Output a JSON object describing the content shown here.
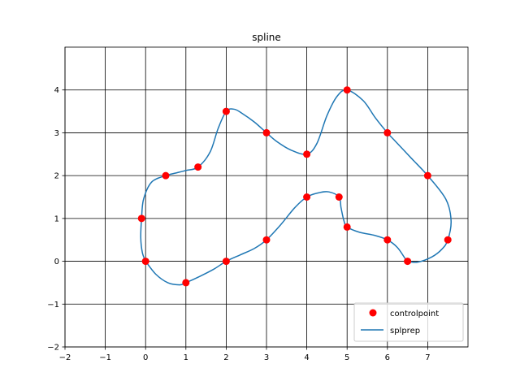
{
  "chart_data": {
    "type": "line",
    "title": "spline",
    "xlabel": "",
    "ylabel": "",
    "xlim": [
      -2,
      8
    ],
    "ylim": [
      -2,
      5
    ],
    "x_ticks": [
      -2,
      -1,
      0,
      1,
      2,
      3,
      4,
      5,
      6,
      7
    ],
    "y_ticks": [
      -2,
      -1,
      0,
      1,
      2,
      3,
      4
    ],
    "x_tick_labels": [
      "−2",
      "−1",
      "0",
      "1",
      "2",
      "3",
      "4",
      "5",
      "6",
      "7"
    ],
    "y_tick_labels": [
      "−2",
      "−1",
      "0",
      "1",
      "2",
      "3",
      "4"
    ],
    "grid": true,
    "legend_position": "bottom-right",
    "series": [
      {
        "name": "controlpoint",
        "kind": "scatter",
        "color": "#ff0000",
        "points": [
          [
            0,
            0
          ],
          [
            1,
            -0.5
          ],
          [
            2,
            0
          ],
          [
            3,
            0.5
          ],
          [
            4,
            1.5
          ],
          [
            4.8,
            1.5
          ],
          [
            5,
            0.8
          ],
          [
            6,
            0.5
          ],
          [
            6.5,
            0
          ],
          [
            7.5,
            0.5
          ],
          [
            7,
            2
          ],
          [
            6,
            3
          ],
          [
            5,
            4
          ],
          [
            4,
            2.5
          ],
          [
            3,
            3
          ],
          [
            2,
            3.5
          ],
          [
            1.3,
            2.2
          ],
          [
            0.5,
            2
          ],
          [
            -0.1,
            1
          ]
        ]
      },
      {
        "name": "splprep",
        "kind": "line",
        "color": "#1f77b4",
        "points": [
          [
            0,
            0
          ],
          [
            0.25,
            -0.3
          ],
          [
            0.55,
            -0.5
          ],
          [
            0.85,
            -0.55
          ],
          [
            1,
            -0.5
          ],
          [
            1.35,
            -0.35
          ],
          [
            1.7,
            -0.18
          ],
          [
            2,
            0
          ],
          [
            2.35,
            0.15
          ],
          [
            2.7,
            0.3
          ],
          [
            3,
            0.5
          ],
          [
            3.35,
            0.85
          ],
          [
            3.7,
            1.25
          ],
          [
            4,
            1.5
          ],
          [
            4.3,
            1.6
          ],
          [
            4.55,
            1.62
          ],
          [
            4.8,
            1.5
          ],
          [
            4.85,
            1.25
          ],
          [
            4.92,
            0.95
          ],
          [
            5,
            0.8
          ],
          [
            5.3,
            0.68
          ],
          [
            5.7,
            0.6
          ],
          [
            6,
            0.5
          ],
          [
            6.25,
            0.32
          ],
          [
            6.45,
            0.05
          ],
          [
            6.5,
            0
          ],
          [
            6.75,
            -0.02
          ],
          [
            7.1,
            0.1
          ],
          [
            7.35,
            0.28
          ],
          [
            7.5,
            0.5
          ],
          [
            7.58,
            0.95
          ],
          [
            7.45,
            1.45
          ],
          [
            7,
            2
          ],
          [
            6.6,
            2.4
          ],
          [
            6.2,
            2.8
          ],
          [
            6,
            3
          ],
          [
            5.7,
            3.35
          ],
          [
            5.4,
            3.75
          ],
          [
            5,
            4
          ],
          [
            4.75,
            3.85
          ],
          [
            4.5,
            3.4
          ],
          [
            4.25,
            2.75
          ],
          [
            4,
            2.5
          ],
          [
            3.6,
            2.6
          ],
          [
            3.25,
            2.8
          ],
          [
            3,
            3
          ],
          [
            2.7,
            3.25
          ],
          [
            2.4,
            3.45
          ],
          [
            2.2,
            3.55
          ],
          [
            2,
            3.5
          ],
          [
            1.8,
            3.1
          ],
          [
            1.6,
            2.55
          ],
          [
            1.3,
            2.2
          ],
          [
            1,
            2.12
          ],
          [
            0.7,
            2.05
          ],
          [
            0.5,
            2
          ],
          [
            0.15,
            1.85
          ],
          [
            -0.05,
            1.45
          ],
          [
            -0.1,
            1
          ],
          [
            -0.12,
            0.55
          ],
          [
            -0.08,
            0.2
          ],
          [
            0,
            0
          ]
        ]
      }
    ]
  }
}
